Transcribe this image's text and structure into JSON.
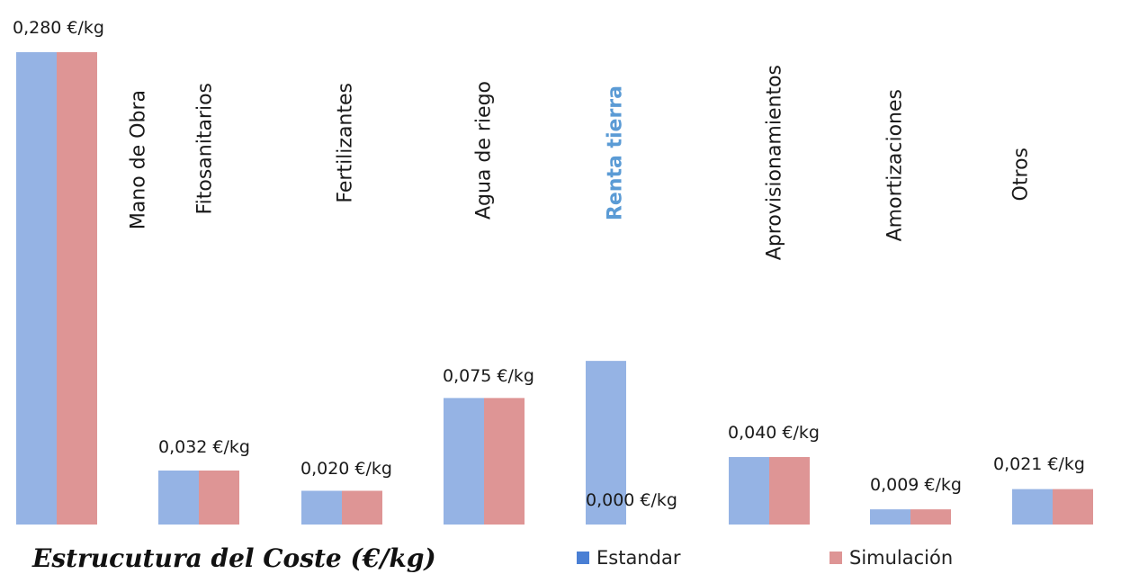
{
  "chart_data": {
    "type": "bar",
    "title": "Estrucutura del Coste (€/kg)",
    "categories": [
      "Mano de Obra",
      "Fitosanitarios",
      "Fertilizantes",
      "Agua de riego",
      "Renta tierra",
      "Aprovisionamientos",
      "Amortizaciones",
      "Otros"
    ],
    "highlighted_category": "Renta tierra",
    "series": [
      {
        "name": "Estandar",
        "color": "#95b3e4",
        "values": [
          0.28,
          0.032,
          0.02,
          0.075,
          0.097,
          0.04,
          0.009,
          0.021
        ]
      },
      {
        "name": "Simulación",
        "color": "#de9595",
        "values": [
          0.28,
          0.032,
          0.02,
          0.075,
          0.0,
          0.04,
          0.009,
          0.021
        ]
      }
    ],
    "data_labels": [
      "0,280 €/kg",
      "0,032 €/kg",
      "0,020 €/kg",
      "0,075 €/kg",
      "0,000 €/kg",
      "0,040 €/kg",
      "0,009 €/kg",
      "0,021 €/kg"
    ],
    "ylim": [
      0,
      0.28
    ],
    "grid": false,
    "legend_position": "bottom"
  }
}
